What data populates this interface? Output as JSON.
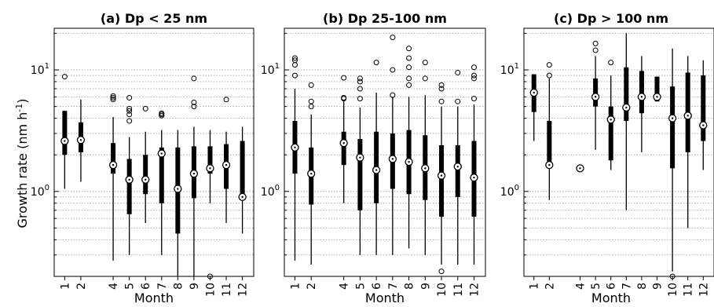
{
  "ylabel_main": "Growth rate (nm h",
  "ylabel_sup": "-1",
  "ylabel_close": ")",
  "ytick_labels": {
    "ten": "10",
    "ten_exp": "1",
    "one": "10",
    "one_exp": "0"
  },
  "chart_data": [
    {
      "type": "boxplot",
      "title": "(a) Dp < 25 nm",
      "xlabel": "Month",
      "ylabel": "Growth rate (nm h-1)",
      "yscale": "log",
      "ylim": [
        0.2,
        22
      ],
      "grid": "y-major-and-minor-dotted",
      "months": [
        1,
        2,
        4,
        5,
        6,
        7,
        8,
        9,
        10,
        11,
        12
      ],
      "boxes": [
        {
          "month": 1,
          "median": 2.6,
          "q1": 2.0,
          "q3": 4.6,
          "wlo": 1.05,
          "whi": 4.6,
          "fliers": [
            8.8
          ]
        },
        {
          "month": 2,
          "median": 2.65,
          "q1": 2.1,
          "q3": 3.7,
          "wlo": 1.2,
          "whi": 5.7,
          "fliers": []
        },
        {
          "month": 4,
          "median": 1.65,
          "q1": 1.4,
          "q3": 2.5,
          "wlo": 0.27,
          "whi": 4.1,
          "fliers": [
            5.7,
            5.9,
            6.1
          ]
        },
        {
          "month": 5,
          "median": 1.25,
          "q1": 0.65,
          "q3": 1.85,
          "wlo": 0.3,
          "whi": 2.8,
          "fliers": [
            3.8,
            4.3,
            4.6,
            4.8,
            5.9
          ]
        },
        {
          "month": 6,
          "median": 1.25,
          "q1": 0.95,
          "q3": 2.0,
          "wlo": 0.55,
          "whi": 3.1,
          "fliers": [
            4.8
          ]
        },
        {
          "month": 7,
          "median": 2.05,
          "q1": 0.8,
          "q3": 2.3,
          "wlo": 0.3,
          "whi": 3.2,
          "fliers": [
            4.2,
            4.3,
            4.4
          ]
        },
        {
          "month": 8,
          "median": 1.05,
          "q1": 0.45,
          "q3": 2.3,
          "wlo": 0.2,
          "whi": 3.2,
          "fliers": []
        },
        {
          "month": 9,
          "median": 1.4,
          "q1": 0.88,
          "q3": 2.35,
          "wlo": 0.2,
          "whi": 3.4,
          "fliers": [
            5.0,
            5.4,
            8.5
          ]
        },
        {
          "month": 10,
          "median": 1.55,
          "q1": 1.4,
          "q3": 2.35,
          "wlo": 0.8,
          "whi": 3.2,
          "fliers": [
            0.2
          ]
        },
        {
          "month": 11,
          "median": 1.65,
          "q1": 1.05,
          "q3": 2.45,
          "wlo": 0.55,
          "whi": 3.1,
          "fliers": [
            5.7
          ]
        },
        {
          "month": 12,
          "median": 0.9,
          "q1": 0.85,
          "q3": 2.6,
          "wlo": 0.45,
          "whi": 3.4,
          "fliers": []
        }
      ]
    },
    {
      "type": "boxplot",
      "title": "(b) Dp 25-100 nm",
      "xlabel": "Month",
      "yscale": "log",
      "ylim": [
        0.2,
        22
      ],
      "grid": "y-major-and-minor-dotted",
      "months": [
        1,
        2,
        4,
        5,
        6,
        7,
        8,
        9,
        10,
        11,
        12
      ],
      "boxes": [
        {
          "month": 1,
          "median": 2.3,
          "q1": 1.4,
          "q3": 3.8,
          "wlo": 0.27,
          "whi": 7.0,
          "fliers": [
            9.0,
            11.0,
            12.0,
            12.5
          ]
        },
        {
          "month": 2,
          "median": 1.4,
          "q1": 0.78,
          "q3": 2.3,
          "wlo": 0.25,
          "whi": 4.3,
          "fliers": [
            5.0,
            5.5,
            7.5
          ]
        },
        {
          "month": 4,
          "median": 2.5,
          "q1": 1.65,
          "q3": 3.1,
          "wlo": 0.8,
          "whi": 5.5,
          "fliers": [
            5.8,
            5.9,
            8.6
          ]
        },
        {
          "month": 5,
          "median": 1.9,
          "q1": 0.7,
          "q3": 2.7,
          "wlo": 0.3,
          "whi": 4.9,
          "fliers": [
            5.8,
            7.0,
            8.0,
            8.5
          ]
        },
        {
          "month": 6,
          "median": 1.5,
          "q1": 0.8,
          "q3": 3.1,
          "wlo": 0.3,
          "whi": 6.5,
          "fliers": [
            11.5
          ]
        },
        {
          "month": 7,
          "median": 1.85,
          "q1": 1.05,
          "q3": 3.0,
          "wlo": 0.3,
          "whi": 6.0,
          "fliers": [
            6.2,
            10.0,
            18.5
          ]
        },
        {
          "month": 8,
          "median": 1.75,
          "q1": 0.95,
          "q3": 3.2,
          "wlo": 0.34,
          "whi": 6.0,
          "fliers": [
            7.5,
            8.5,
            10.5,
            12.5,
            15.0
          ]
        },
        {
          "month": 9,
          "median": 1.55,
          "q1": 0.85,
          "q3": 2.9,
          "wlo": 0.3,
          "whi": 6.2,
          "fliers": [
            8.5,
            11.5
          ]
        },
        {
          "month": 10,
          "median": 1.35,
          "q1": 0.62,
          "q3": 2.4,
          "wlo": 0.25,
          "whi": 5.0,
          "fliers": [
            0.22,
            5.5,
            7.0,
            7.5
          ]
        },
        {
          "month": 11,
          "median": 1.6,
          "q1": 0.9,
          "q3": 2.4,
          "wlo": 0.25,
          "whi": 5.0,
          "fliers": [
            5.5,
            9.5
          ]
        },
        {
          "month": 12,
          "median": 1.3,
          "q1": 0.62,
          "q3": 2.6,
          "wlo": 0.25,
          "whi": 5.2,
          "fliers": [
            5.8,
            8.5,
            9.0,
            10.5
          ]
        }
      ]
    },
    {
      "type": "boxplot",
      "title": "(c) Dp > 100 nm",
      "xlabel": "Month",
      "yscale": "log",
      "ylim": [
        0.2,
        22
      ],
      "grid": "y-major-and-minor-dotted",
      "months": [
        1,
        2,
        4,
        5,
        6,
        7,
        8,
        9,
        10,
        11,
        12
      ],
      "boxes": [
        {
          "month": 1,
          "median": 6.5,
          "q1": 4.5,
          "q3": 9.2,
          "wlo": 2.6,
          "whi": 9.2,
          "fliers": []
        },
        {
          "month": 2,
          "median": 1.65,
          "q1": 1.65,
          "q3": 3.8,
          "wlo": 0.85,
          "whi": 8.5,
          "fliers": [
            9.0,
            11.0
          ]
        },
        {
          "month": 4,
          "median": 1.55,
          "q1": 1.55,
          "q3": 1.55,
          "wlo": 1.55,
          "whi": 1.55,
          "fliers": []
        },
        {
          "month": 5,
          "median": 6.0,
          "q1": 5.0,
          "q3": 8.5,
          "wlo": 2.2,
          "whi": 13.0,
          "fliers": [
            14.5,
            16.5
          ]
        },
        {
          "month": 6,
          "median": 3.9,
          "q1": 1.8,
          "q3": 5.0,
          "wlo": 1.5,
          "whi": 9.0,
          "fliers": [
            11.5
          ]
        },
        {
          "month": 7,
          "median": 4.9,
          "q1": 3.8,
          "q3": 10.5,
          "wlo": 0.7,
          "whi": 20.0,
          "fliers": []
        },
        {
          "month": 8,
          "median": 6.0,
          "q1": 4.4,
          "q3": 9.8,
          "wlo": 2.1,
          "whi": 13.0,
          "fliers": []
        },
        {
          "month": 9,
          "median": 6.0,
          "q1": 5.5,
          "q3": 8.8,
          "wlo": 5.5,
          "whi": 8.8,
          "fliers": []
        },
        {
          "month": 10,
          "median": 4.0,
          "q1": 1.55,
          "q3": 7.3,
          "wlo": 0.22,
          "whi": 15.0,
          "fliers": [
            0.2
          ]
        },
        {
          "month": 11,
          "median": 4.2,
          "q1": 2.1,
          "q3": 9.5,
          "wlo": 0.5,
          "whi": 13.0,
          "fliers": []
        },
        {
          "month": 12,
          "median": 3.5,
          "q1": 2.6,
          "q3": 9.0,
          "wlo": 1.5,
          "whi": 12.0,
          "fliers": []
        }
      ]
    }
  ]
}
